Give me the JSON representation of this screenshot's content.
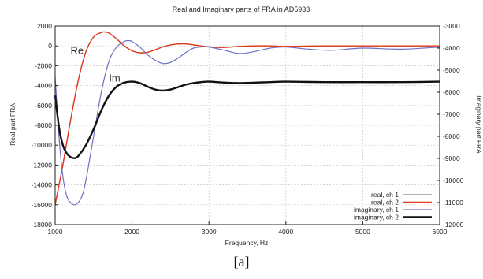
{
  "caption": "[a]",
  "chart_data": {
    "type": "line",
    "title": "Real and Imaginary parts of FRA in AD5933",
    "xlabel": "Frequency, Hz",
    "ylabel": "Real part FRA",
    "y2label": "Imaginary part FRA",
    "xlim": [
      1000,
      6000
    ],
    "ylim": [
      -18000,
      2000
    ],
    "y2lim": [
      -12000,
      -3000
    ],
    "xticks": [
      1000,
      2000,
      3000,
      4000,
      5000,
      6000
    ],
    "yticks": [
      2000,
      0,
      -2000,
      -4000,
      -6000,
      -8000,
      -10000,
      -12000,
      -14000,
      -16000,
      -18000
    ],
    "y2ticks": [
      -3000,
      -4000,
      -5000,
      -6000,
      -7000,
      -8000,
      -9000,
      -10000,
      -11000,
      -12000
    ],
    "grid": true,
    "legend_position": "bottom-right",
    "annotations": [
      {
        "text": "Re",
        "x": 1200,
        "y": -800
      },
      {
        "text": "Im",
        "x": 1700,
        "y": -3600
      }
    ],
    "series": [
      {
        "name": "real, ch 1",
        "axis": "left",
        "color": "#808080",
        "x": [
          1000,
          1100,
          1200,
          1300,
          1400,
          1500,
          1600,
          1650,
          1700,
          1800,
          1900,
          2000,
          2100,
          2200,
          2300,
          2400,
          2500,
          2600,
          2700,
          2800,
          2900,
          3000,
          3200,
          3400,
          3600,
          3800,
          4000,
          4500,
          5000,
          5500,
          6000
        ],
        "y": [
          -16000,
          -12000,
          -7500,
          -3500,
          -600,
          900,
          1350,
          1400,
          1300,
          700,
          0,
          -500,
          -700,
          -650,
          -400,
          -100,
          100,
          200,
          200,
          100,
          0,
          -100,
          -150,
          -50,
          0,
          0,
          -50,
          0,
          0,
          0,
          0
        ]
      },
      {
        "name": "real, ch 2",
        "axis": "left",
        "color": "#e03a1e",
        "x": [
          1000,
          1100,
          1200,
          1300,
          1400,
          1500,
          1600,
          1650,
          1700,
          1800,
          1900,
          2000,
          2100,
          2200,
          2300,
          2400,
          2500,
          2600,
          2700,
          2800,
          2900,
          3000,
          3200,
          3400,
          3600,
          3800,
          4000,
          4500,
          5000,
          5500,
          6000
        ],
        "y": [
          -16000,
          -12000,
          -7500,
          -3500,
          -600,
          900,
          1350,
          1400,
          1300,
          700,
          0,
          -500,
          -700,
          -650,
          -400,
          -100,
          100,
          200,
          200,
          100,
          0,
          -100,
          -150,
          -50,
          0,
          0,
          -50,
          0,
          0,
          0,
          0
        ]
      },
      {
        "name": "imaginary, ch 1",
        "axis": "right",
        "color": "#6b72c4",
        "x": [
          1000,
          1050,
          1100,
          1150,
          1200,
          1250,
          1300,
          1350,
          1400,
          1500,
          1600,
          1700,
          1800,
          1900,
          1950,
          2000,
          2100,
          2200,
          2300,
          2400,
          2500,
          2600,
          2700,
          2800,
          2900,
          3000,
          3200,
          3400,
          3600,
          3800,
          4000,
          4300,
          4600,
          5000,
          5500,
          6000
        ],
        "y": [
          -5300,
          -8000,
          -9800,
          -10700,
          -11000,
          -11100,
          -11000,
          -10700,
          -10000,
          -8000,
          -6000,
          -4600,
          -3950,
          -3700,
          -3660,
          -3700,
          -3950,
          -4300,
          -4550,
          -4700,
          -4650,
          -4450,
          -4200,
          -4000,
          -3950,
          -3950,
          -4100,
          -4250,
          -4150,
          -4000,
          -3950,
          -4050,
          -4100,
          -4000,
          -4050,
          -3950
        ]
      },
      {
        "name": "imaginary, ch 2",
        "axis": "left",
        "color": "#111111",
        "x": [
          1000,
          1050,
          1100,
          1150,
          1200,
          1250,
          1300,
          1400,
          1500,
          1600,
          1700,
          1800,
          1900,
          2000,
          2100,
          2200,
          2300,
          2400,
          2500,
          2600,
          2700,
          2800,
          2900,
          3000,
          3200,
          3400,
          3600,
          3800,
          4000,
          4500,
          5000,
          5500,
          6000
        ],
        "y": [
          -5000,
          -8200,
          -10000,
          -10800,
          -11200,
          -11300,
          -11100,
          -10000,
          -8400,
          -6500,
          -5000,
          -4100,
          -3700,
          -3600,
          -3750,
          -4100,
          -4400,
          -4500,
          -4400,
          -4150,
          -3900,
          -3750,
          -3650,
          -3600,
          -3700,
          -3750,
          -3700,
          -3650,
          -3600,
          -3650,
          -3650,
          -3650,
          -3600
        ]
      }
    ]
  }
}
